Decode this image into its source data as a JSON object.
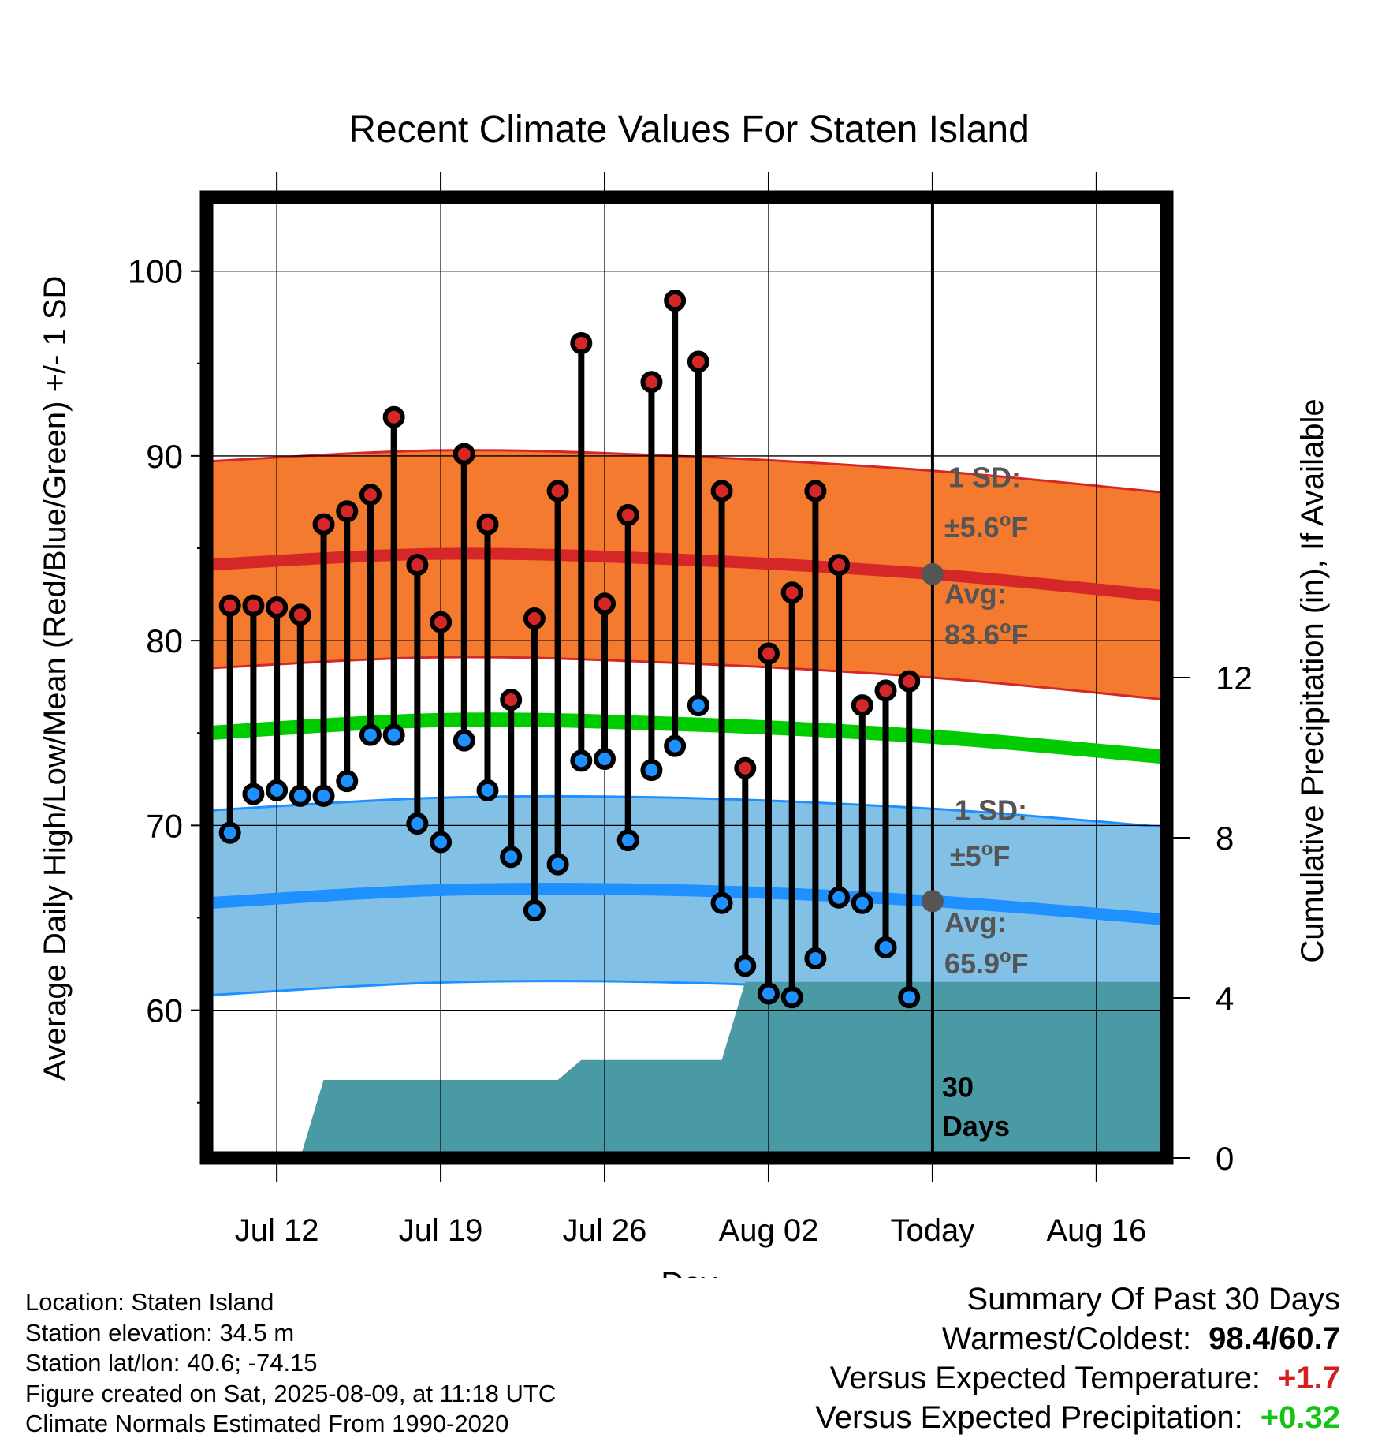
{
  "chart_data": {
    "type": "line",
    "title": "Recent Climate Values For Staten Island",
    "xlabel": "Day",
    "ylabel": "Average Daily High/Low/Mean (Red/Blue/Green) +/- 1 SD",
    "y2label": "Cumulative Precipitation (in), If Available",
    "ylim": [
      52,
      104
    ],
    "y2lim": [
      0,
      24
    ],
    "yticks": [
      60,
      70,
      80,
      90,
      100
    ],
    "y2ticks": [
      0,
      4,
      8,
      12
    ],
    "xlim": [
      "2025-07-09",
      "2025-08-19"
    ],
    "xticks": [
      {
        "date": "2025-07-12",
        "label": "Jul 12"
      },
      {
        "date": "2025-07-19",
        "label": "Jul 19"
      },
      {
        "date": "2025-07-26",
        "label": "Jul 26"
      },
      {
        "date": "2025-08-02",
        "label": "Aug 02"
      },
      {
        "date": "2025-08-09",
        "label": "Today"
      },
      {
        "date": "2025-08-16",
        "label": "Aug 16"
      }
    ],
    "grid": true,
    "today": "2025-08-09",
    "today_label": "30 Days",
    "daily_observations": {
      "dates": [
        "2025-07-10",
        "2025-07-11",
        "2025-07-12",
        "2025-07-13",
        "2025-07-14",
        "2025-07-15",
        "2025-07-16",
        "2025-07-17",
        "2025-07-18",
        "2025-07-19",
        "2025-07-20",
        "2025-07-21",
        "2025-07-22",
        "2025-07-23",
        "2025-07-24",
        "2025-07-25",
        "2025-07-26",
        "2025-07-27",
        "2025-07-28",
        "2025-07-29",
        "2025-07-30",
        "2025-07-31",
        "2025-08-01",
        "2025-08-02",
        "2025-08-03",
        "2025-08-04",
        "2025-08-05",
        "2025-08-06",
        "2025-08-07",
        "2025-08-08"
      ],
      "high": [
        81.9,
        81.9,
        81.8,
        81.4,
        86.3,
        87.0,
        87.9,
        92.1,
        84.1,
        81.0,
        90.1,
        86.3,
        76.8,
        81.2,
        88.1,
        96.1,
        82.0,
        86.8,
        94.0,
        98.4,
        95.1,
        88.1,
        73.1,
        79.3,
        82.6,
        88.1,
        84.1,
        76.5,
        77.3,
        77.8
      ],
      "low": [
        69.6,
        71.7,
        71.9,
        71.6,
        71.6,
        72.4,
        74.9,
        74.9,
        70.1,
        69.1,
        74.6,
        71.9,
        68.3,
        65.4,
        67.9,
        73.5,
        73.6,
        69.2,
        73.0,
        74.3,
        76.5,
        65.8,
        62.4,
        60.9,
        60.7,
        62.8,
        66.1,
        65.8,
        63.4,
        60.7
      ]
    },
    "normals": {
      "dates": [
        "2025-07-09",
        "2025-07-19",
        "2025-07-29",
        "2025-08-09",
        "2025-08-19"
      ],
      "avg_high": [
        84.1,
        84.7,
        84.4,
        83.6,
        82.4
      ],
      "avg_low": [
        65.8,
        66.5,
        66.5,
        65.9,
        64.9
      ],
      "avg_mean": [
        75.0,
        75.7,
        75.5,
        74.8,
        73.7
      ],
      "high_sd": 5.6,
      "low_sd": 5.0
    },
    "series": [
      {
        "name": "High",
        "color": "#d62728"
      },
      {
        "name": "Low",
        "color": "#1e90ff"
      },
      {
        "name": "Mean",
        "color": "#00cc00"
      }
    ],
    "cumulative_precip": {
      "dates": [
        "2025-07-13",
        "2025-07-14",
        "2025-07-24",
        "2025-07-25",
        "2025-07-31",
        "2025-08-01",
        "2025-08-19"
      ],
      "values": [
        0.0,
        1.95,
        1.95,
        2.45,
        2.45,
        4.4,
        4.4
      ]
    },
    "annotations": {
      "high_sd_label": "1 SD:",
      "high_sd_value": "±5.6",
      "high_avg_label": "Avg:",
      "high_avg_value": "83.6",
      "low_sd_label": "1 SD:",
      "low_sd_value": "±5",
      "low_avg_label": "Avg:",
      "low_avg_value": "65.9",
      "unit_symbol": "o",
      "unit": "F",
      "today_days": "30",
      "today_days_word": "Days"
    },
    "colors": {
      "high_band": "#f47a30",
      "high_line": "#d62728",
      "low_band": "#82c0e6",
      "low_line": "#1e90ff",
      "mean_line": "#00cc00",
      "precip": "#4a9aa5",
      "annotation_text": "#555555"
    }
  },
  "station_info": {
    "location": "Location: Staten Island",
    "elevation": "Station elevation: 34.5 m",
    "latlon": "Station lat/lon: 40.6; -74.15",
    "created": "Figure created on Sat, 2025-08-09, at 11:18 UTC",
    "normals": "Climate Normals Estimated From 1990-2020"
  },
  "summary": {
    "title": "Summary Of Past 30 Days",
    "warmest_coldest_label": "Warmest/Coldest:",
    "warmest_coldest_value": "98.4/60.7",
    "temp_label": "Versus Expected Temperature:",
    "temp_value": "+1.7",
    "precip_label": "Versus Expected Precipitation:",
    "precip_value": "+0.32"
  }
}
